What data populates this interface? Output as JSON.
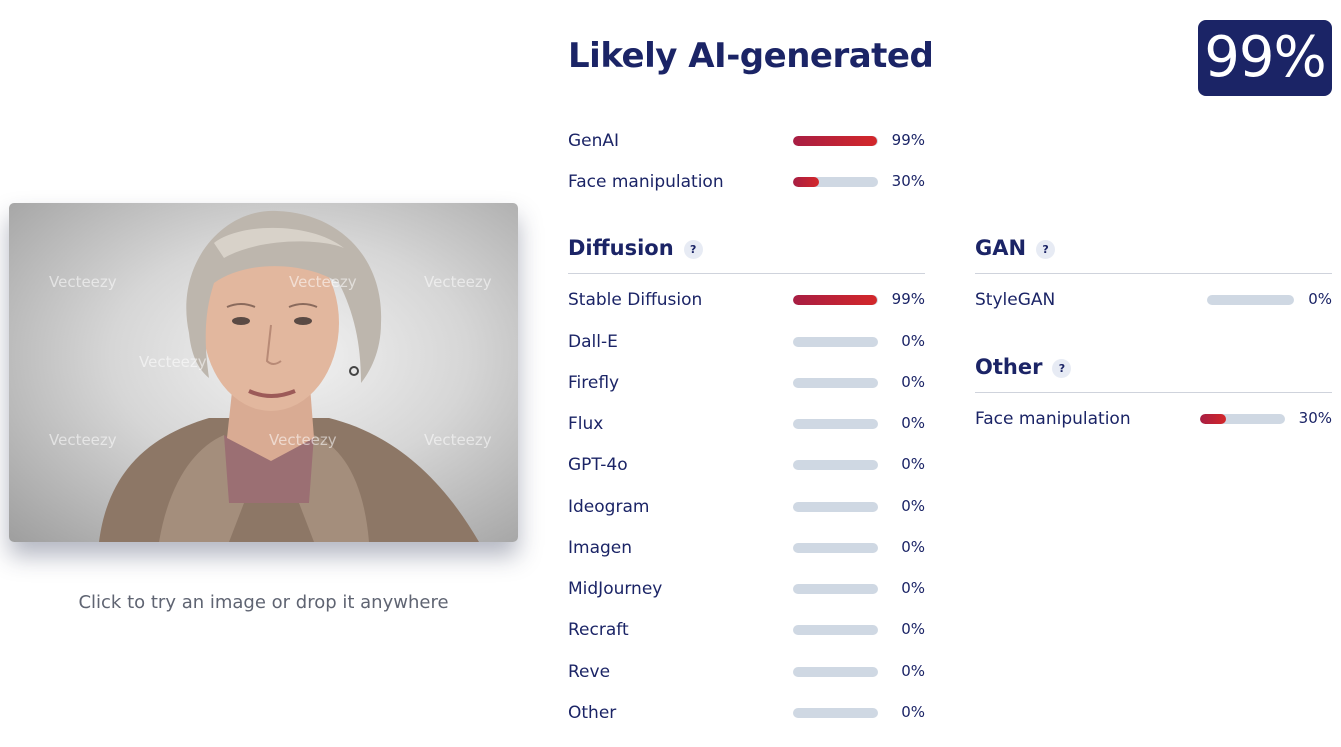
{
  "upload": {
    "watermark": "Vecteezy",
    "hint": "Click to try an image or drop it anywhere"
  },
  "result": {
    "title": "Likely AI-generated",
    "score_label": "99%",
    "summary": [
      {
        "label": "GenAI",
        "value": 99,
        "pct": "99%"
      },
      {
        "label": "Face manipulation",
        "value": 30,
        "pct": "30%"
      }
    ]
  },
  "diffusion": {
    "title": "Diffusion",
    "help": "?",
    "items": [
      {
        "label": "Stable Diffusion",
        "value": 99,
        "pct": "99%"
      },
      {
        "label": "Dall-E",
        "value": 0,
        "pct": "0%"
      },
      {
        "label": "Firefly",
        "value": 0,
        "pct": "0%"
      },
      {
        "label": "Flux",
        "value": 0,
        "pct": "0%"
      },
      {
        "label": "GPT-4o",
        "value": 0,
        "pct": "0%"
      },
      {
        "label": "Ideogram",
        "value": 0,
        "pct": "0%"
      },
      {
        "label": "Imagen",
        "value": 0,
        "pct": "0%"
      },
      {
        "label": "MidJourney",
        "value": 0,
        "pct": "0%"
      },
      {
        "label": "Recraft",
        "value": 0,
        "pct": "0%"
      },
      {
        "label": "Reve",
        "value": 0,
        "pct": "0%"
      },
      {
        "label": "Other",
        "value": 0,
        "pct": "0%"
      }
    ]
  },
  "gan": {
    "title": "GAN",
    "help": "?",
    "items": [
      {
        "label": "StyleGAN",
        "value": 0,
        "pct": "0%"
      }
    ]
  },
  "other": {
    "title": "Other",
    "help": "?",
    "items": [
      {
        "label": "Face manipulation",
        "value": 30,
        "pct": "30%"
      }
    ]
  },
  "colors": {
    "navy": "#1b2466",
    "bar_track": "#cfd8e3",
    "bar_fill_start": "#a81e43",
    "bar_fill_end": "#d3272a"
  }
}
